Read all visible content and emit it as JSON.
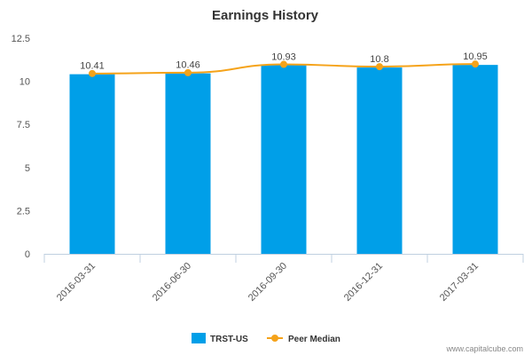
{
  "chart_data": {
    "type": "bar",
    "title": "Earnings History",
    "categories": [
      "2016-03-31",
      "2016-06-30",
      "2016-09-30",
      "2016-12-31",
      "2017-03-31"
    ],
    "series": [
      {
        "name": "TRST-US",
        "type": "bar",
        "color": "#009fe8",
        "values": [
          10.41,
          10.46,
          10.93,
          10.8,
          10.95
        ]
      },
      {
        "name": "Peer Median",
        "type": "line",
        "color": "#f5a31a",
        "values": [
          10.45,
          10.5,
          10.98,
          10.85,
          11.0
        ]
      }
    ],
    "data_labels": [
      "10.41",
      "10.46",
      "10.93",
      "10.8",
      "10.95"
    ],
    "y_ticks": [
      {
        "value": 0,
        "label": "0"
      },
      {
        "value": 2.5,
        "label": "2.5"
      },
      {
        "value": 5,
        "label": "5"
      },
      {
        "value": 7.5,
        "label": "7.5"
      },
      {
        "value": 10,
        "label": "10"
      },
      {
        "value": 12.5,
        "label": "12.5"
      }
    ],
    "ylim": [
      0,
      12.5
    ],
    "grid": false,
    "legend_position": "bottom-center"
  },
  "watermark": "www.capitalcube.com"
}
